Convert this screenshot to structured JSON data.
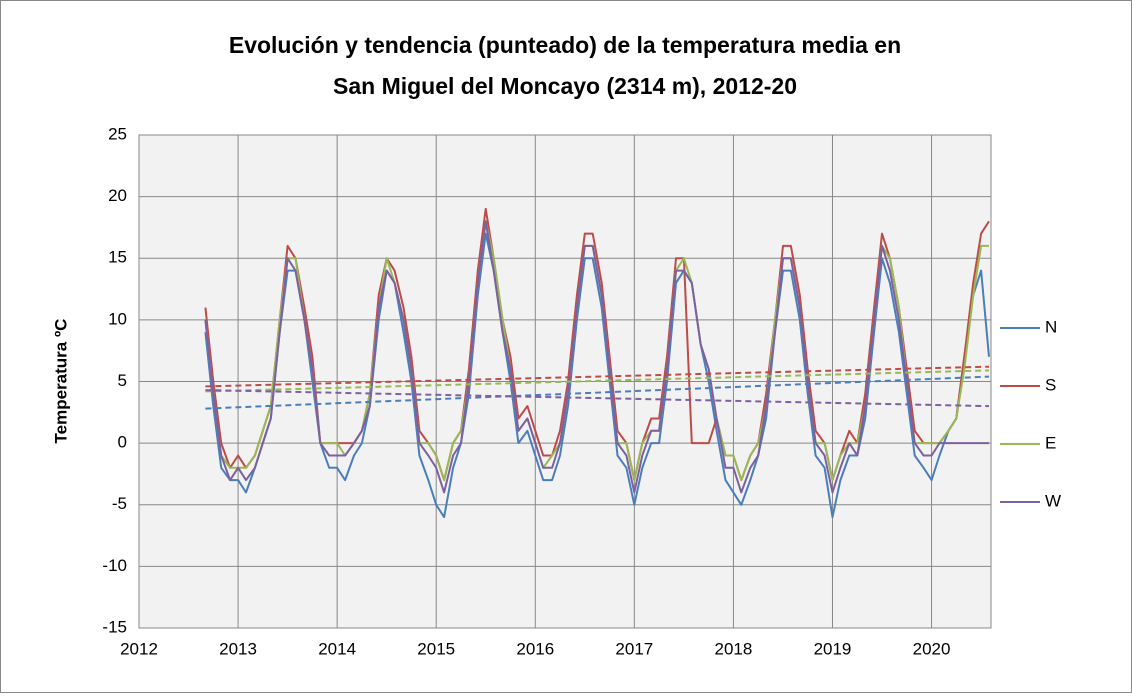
{
  "chart_data": {
    "type": "line",
    "title": [
      "Evolución y tendencia (punteado) de la temperatura media en",
      "San Miguel del Moncayo (2314 m), 2012-20"
    ],
    "ylabel": "Temperatura ºC",
    "x": [
      2012.67,
      2012.75,
      2012.83,
      2012.92,
      2013.0,
      2013.08,
      2013.17,
      2013.25,
      2013.33,
      2013.42,
      2013.5,
      2013.58,
      2013.67,
      2013.75,
      2013.83,
      2013.92,
      2014.0,
      2014.08,
      2014.17,
      2014.25,
      2014.33,
      2014.42,
      2014.5,
      2014.58,
      2014.67,
      2014.75,
      2014.83,
      2014.92,
      2015.0,
      2015.08,
      2015.17,
      2015.25,
      2015.33,
      2015.42,
      2015.5,
      2015.58,
      2015.67,
      2015.75,
      2015.83,
      2015.92,
      2016.0,
      2016.08,
      2016.17,
      2016.25,
      2016.33,
      2016.42,
      2016.5,
      2016.58,
      2016.67,
      2016.75,
      2016.83,
      2016.92,
      2017.0,
      2017.08,
      2017.17,
      2017.25,
      2017.33,
      2017.42,
      2017.5,
      2017.58,
      2017.67,
      2017.75,
      2017.83,
      2017.92,
      2018.0,
      2018.08,
      2018.17,
      2018.25,
      2018.33,
      2018.42,
      2018.5,
      2018.58,
      2018.67,
      2018.75,
      2018.83,
      2018.92,
      2019.0,
      2019.08,
      2019.17,
      2019.25,
      2019.33,
      2019.42,
      2019.5,
      2019.58,
      2019.67,
      2019.75,
      2019.83,
      2019.92,
      2020.0,
      2020.08,
      2020.17,
      2020.25,
      2020.33,
      2020.42,
      2020.5,
      2020.58
    ],
    "series": [
      {
        "name": "N",
        "color": "#4a7ebb",
        "values": [
          9,
          3,
          -2,
          -3,
          -3,
          -4,
          -2,
          0,
          2,
          9,
          14,
          14,
          10,
          5,
          0,
          -2,
          -2,
          -3,
          -1,
          0,
          3,
          10,
          14,
          13,
          9,
          5,
          -1,
          -3,
          -5,
          -6,
          -2,
          0,
          4,
          12,
          17,
          14,
          9,
          5,
          0,
          1,
          -1,
          -3,
          -3,
          -1,
          3,
          10,
          15,
          15,
          11,
          5,
          -1,
          -2,
          -5,
          -2,
          0,
          0,
          5,
          13,
          14,
          13,
          8,
          5,
          1,
          -3,
          -4,
          -5,
          -3,
          -1,
          2,
          9,
          14,
          14,
          10,
          4,
          -1,
          -2,
          -6,
          -3,
          -1,
          -1,
          2,
          9,
          15,
          13,
          9,
          4,
          -1,
          -2,
          -3,
          -1,
          1,
          2,
          7,
          12,
          14,
          7
        ]
      },
      {
        "name": "S",
        "color": "#be4b48",
        "values": [
          11,
          5,
          0,
          -2,
          -1,
          -2,
          -1,
          1,
          3,
          10,
          16,
          15,
          11,
          7,
          0,
          0,
          0,
          0,
          0,
          1,
          4,
          12,
          15,
          14,
          11,
          7,
          1,
          0,
          -1,
          -3,
          0,
          1,
          6,
          14,
          19,
          15,
          10,
          7,
          2,
          3,
          1,
          -1,
          -1,
          1,
          5,
          12,
          17,
          17,
          13,
          7,
          1,
          0,
          -3,
          0,
          2,
          2,
          7,
          15,
          15,
          0,
          0,
          0,
          2,
          -1,
          -1,
          -3,
          -1,
          0,
          4,
          10,
          16,
          16,
          12,
          6,
          1,
          0,
          -3,
          -1,
          1,
          0,
          4,
          11,
          17,
          15,
          11,
          6,
          1,
          0,
          0,
          0,
          1,
          2,
          7,
          13,
          17,
          18
        ]
      },
      {
        "name": "E",
        "color": "#98b954",
        "values": [
          10,
          4,
          -1,
          -2,
          -2,
          -2,
          -1,
          1,
          3,
          10,
          15,
          15,
          10,
          6,
          0,
          0,
          0,
          -1,
          0,
          1,
          4,
          11,
          15,
          13,
          10,
          6,
          0,
          0,
          -1,
          -3,
          0,
          1,
          5,
          13,
          18,
          15,
          10,
          6,
          1,
          2,
          0,
          -2,
          -1,
          0,
          4,
          11,
          16,
          16,
          12,
          6,
          0,
          0,
          -3,
          0,
          1,
          1,
          6,
          14,
          15,
          13,
          8,
          6,
          2,
          -1,
          -1,
          -3,
          -1,
          0,
          3,
          10,
          15,
          15,
          11,
          5,
          0,
          0,
          -3,
          -1,
          0,
          0,
          3,
          10,
          16,
          15,
          11,
          5,
          0,
          0,
          0,
          0,
          1,
          2,
          6,
          12,
          16,
          16
        ]
      },
      {
        "name": "W",
        "color": "#7d60a0",
        "values": [
          10,
          4,
          -1,
          -3,
          -2,
          -3,
          -2,
          0,
          2,
          9,
          15,
          14,
          10,
          6,
          0,
          -1,
          -1,
          -1,
          0,
          1,
          3,
          11,
          14,
          13,
          10,
          6,
          0,
          -1,
          -2,
          -4,
          -1,
          0,
          5,
          13,
          18,
          14,
          9,
          6,
          1,
          2,
          0,
          -2,
          -2,
          0,
          4,
          11,
          16,
          16,
          12,
          6,
          0,
          -1,
          -4,
          -1,
          1,
          1,
          6,
          14,
          14,
          13,
          8,
          6,
          2,
          -2,
          -2,
          -4,
          -2,
          -1,
          3,
          9,
          15,
          15,
          11,
          5,
          0,
          -1,
          -4,
          -2,
          0,
          -1,
          3,
          10,
          16,
          14,
          10,
          5,
          0,
          -1,
          -1,
          0,
          0,
          0,
          0,
          0,
          0,
          0
        ]
      }
    ],
    "trend_x": [
      2012.67,
      2020.58
    ],
    "trendlines": [
      {
        "color": "#4a7ebb",
        "values": [
          2.8,
          5.4
        ]
      },
      {
        "color": "#be4b48",
        "values": [
          4.6,
          6.2
        ]
      },
      {
        "color": "#98b954",
        "values": [
          4.2,
          5.9
        ]
      },
      {
        "color": "#7d60a0",
        "values": [
          4.3,
          3.0
        ]
      }
    ],
    "xlim": [
      2012,
      2020.6
    ],
    "xticks": [
      2012,
      2013,
      2014,
      2015,
      2016,
      2017,
      2018,
      2019,
      2020
    ],
    "ylim": [
      -15,
      25
    ],
    "yticks": [
      -15,
      -10,
      -5,
      0,
      5,
      10,
      15,
      20,
      25
    ],
    "grid": true,
    "legend": "right"
  }
}
